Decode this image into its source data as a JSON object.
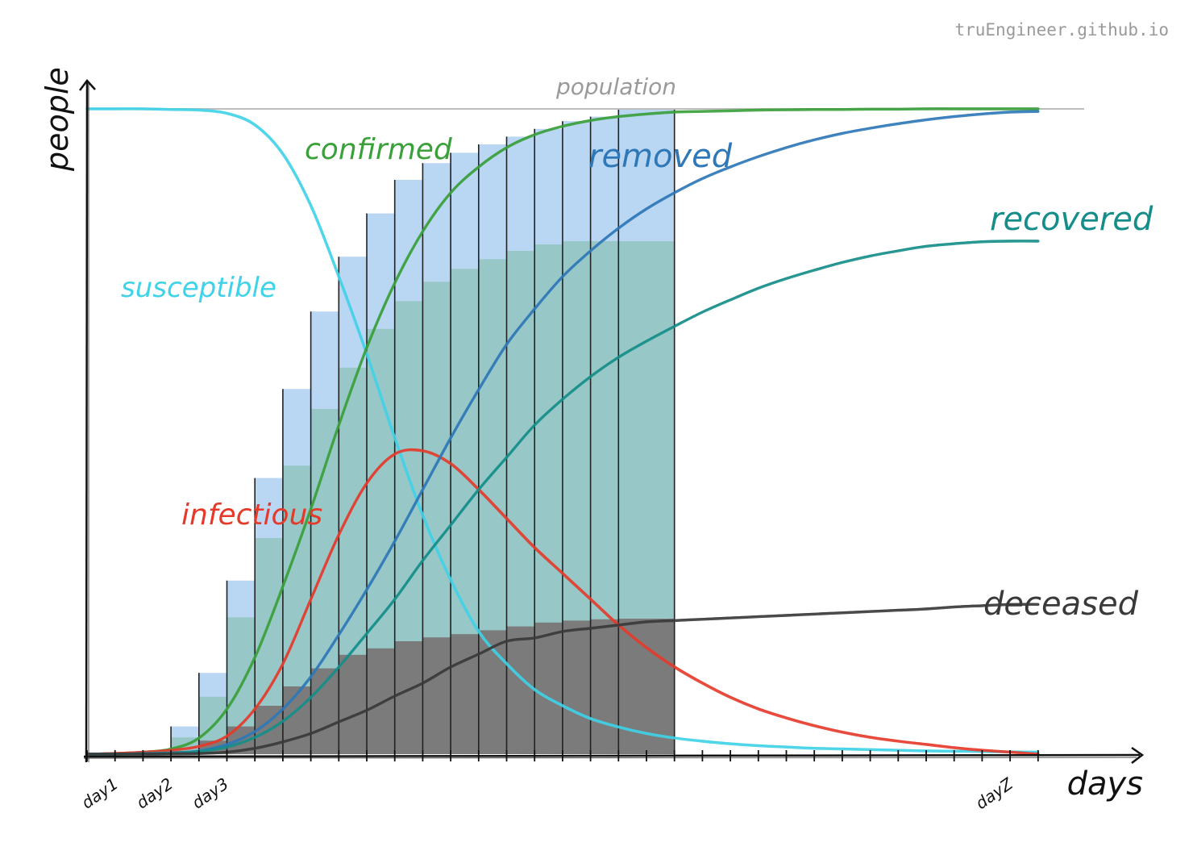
{
  "watermark": "truEngineer.github.io",
  "chart_data": {
    "type": "area",
    "title": "",
    "xlabel": "days",
    "ylabel": "people",
    "x_tick_labels": [
      "day1",
      "day2",
      "day3",
      "dayZ"
    ],
    "ylim": [
      0,
      100
    ],
    "grid": false,
    "reference_line": {
      "name": "population",
      "value": 100,
      "color": "#bdbdbd"
    },
    "x": [
      1,
      2,
      3,
      4,
      5,
      6,
      7,
      8,
      9,
      10,
      11,
      12,
      13,
      14,
      15,
      16,
      17,
      18,
      19,
      20,
      21,
      22,
      23,
      24,
      25,
      26,
      27,
      28,
      29,
      30,
      31,
      32,
      33,
      34,
      35
    ],
    "series": [
      {
        "name": "susceptible",
        "color": "#3fd2e8",
        "values": [
          100,
          100,
          100,
          99.9,
          99.8,
          99.3,
          97.5,
          93,
          85,
          74,
          62,
          49,
          37,
          27,
          19,
          14,
          10,
          7.5,
          5.5,
          4.2,
          3.2,
          2.5,
          2,
          1.6,
          1.3,
          1.1,
          0.9,
          0.8,
          0.7,
          0.6,
          0.5,
          0.45,
          0.4,
          0.35,
          0.3
        ]
      },
      {
        "name": "confirmed",
        "color": "#3aa03a",
        "values": [
          0,
          0.1,
          0.3,
          0.8,
          2.5,
          7,
          15,
          26,
          38,
          51,
          63,
          73,
          81,
          87,
          91,
          94,
          96,
          97.3,
          98.2,
          98.8,
          99.2,
          99.5,
          99.6,
          99.7,
          99.8,
          99.85,
          99.9,
          99.9,
          99.95,
          99.95,
          100,
          100,
          100,
          100,
          100
        ]
      },
      {
        "name": "infectious",
        "color": "#e53a2a",
        "values": [
          0,
          0.1,
          0.3,
          0.6,
          1.2,
          2.8,
          7,
          14,
          24,
          34,
          42,
          46.5,
          47,
          45,
          41,
          36.5,
          32,
          28,
          24,
          20,
          16.5,
          13.5,
          11,
          8.8,
          7,
          5.6,
          4.4,
          3.4,
          2.6,
          2,
          1.5,
          1,
          0.6,
          0.3,
          0
        ]
      },
      {
        "name": "removed",
        "color": "#2f78b8",
        "values": [
          0,
          0,
          0.1,
          0.2,
          0.5,
          1.5,
          3.5,
          7,
          12,
          18.5,
          25.5,
          33,
          41,
          49,
          56.5,
          63.5,
          69,
          74,
          78,
          81.5,
          84.5,
          87,
          89.2,
          91,
          92.6,
          94,
          95.2,
          96.2,
          97,
          97.7,
          98.3,
          98.8,
          99.2,
          99.5,
          99.6
        ]
      },
      {
        "name": "recovered",
        "color": "#158e8a",
        "values": [
          0,
          0,
          0.05,
          0.15,
          0.4,
          1.1,
          2.6,
          5.1,
          8.8,
          13.5,
          18.7,
          24,
          30,
          35.5,
          41,
          46,
          51,
          55,
          58.5,
          61.5,
          64,
          66.3,
          68.5,
          70.4,
          72.2,
          73.7,
          75,
          76.2,
          77.2,
          78,
          78.7,
          79.1,
          79.4,
          79.5,
          79.5
        ]
      },
      {
        "name": "deceased",
        "color": "#3a3a3a",
        "values": [
          0,
          0,
          0.02,
          0.05,
          0.1,
          0.3,
          0.9,
          1.9,
          3.2,
          5,
          6.8,
          9,
          11,
          13.5,
          15.5,
          17.5,
          18,
          19,
          19.5,
          20,
          20.5,
          20.7,
          20.9,
          21.1,
          21.3,
          21.5,
          21.7,
          21.9,
          22.1,
          22.3,
          22.5,
          22.8,
          23,
          23.2,
          23.2
        ]
      }
    ],
    "bars": {
      "categories": [
        4,
        5,
        6,
        7,
        8,
        9,
        10,
        11,
        12,
        13,
        14,
        15,
        16,
        17,
        18,
        19,
        20
      ],
      "removed": [
        4.3,
        12.6,
        26.9,
        42.8,
        56.6,
        68.6,
        77.1,
        83.8,
        89.0,
        91.6,
        93.2,
        94.5,
        95.7,
        96.9,
        98.1,
        98.8,
        100
      ],
      "recovered": [
        2.6,
        8.9,
        21.2,
        33.5,
        44.7,
        53.5,
        59.9,
        65.9,
        70.2,
        73.2,
        75.2,
        76.7,
        78.0,
        79.0,
        79.5,
        79.5,
        79.5
      ],
      "deceased": [
        0.5,
        2.1,
        4.3,
        7.5,
        10.5,
        13.3,
        15.4,
        16.4,
        17.5,
        18.1,
        18.6,
        19.2,
        19.8,
        20.4,
        20.7,
        20.9,
        21.0
      ],
      "colors": {
        "removed": "#b9d6f3",
        "recovered": "#97c7c7",
        "deceased": "#7b7b7b"
      }
    }
  }
}
